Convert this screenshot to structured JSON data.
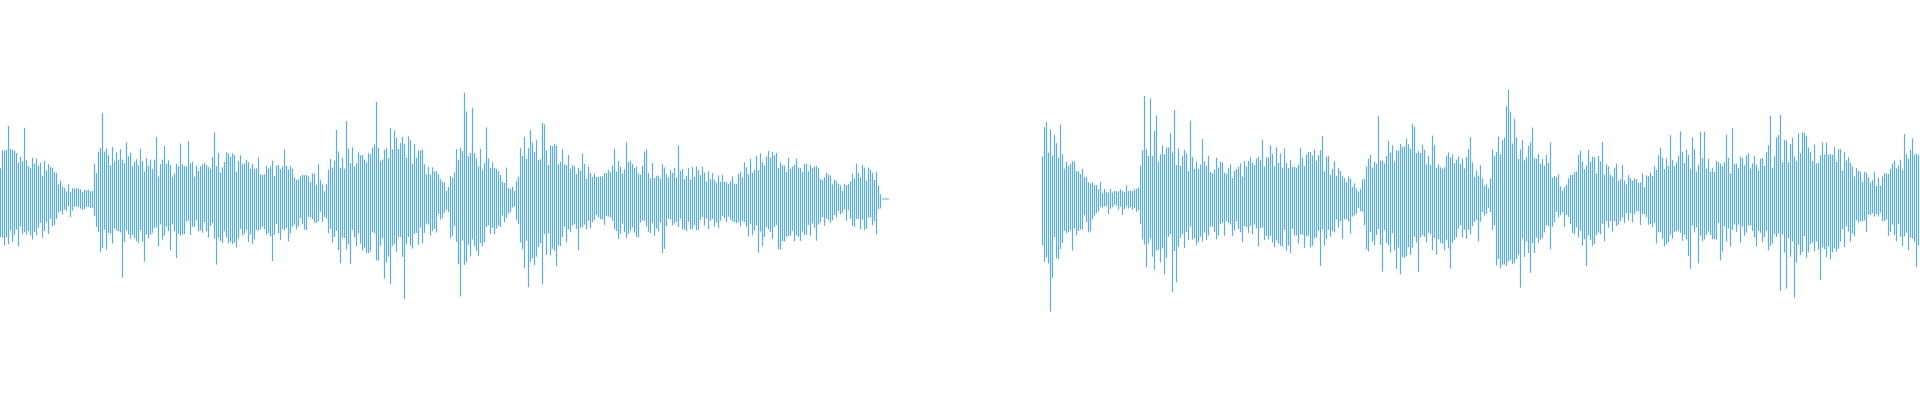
{
  "chart_data": {
    "type": "waveform",
    "color": "#5dade2",
    "background": "#ffffff",
    "amplitude_range": [
      -1,
      1
    ],
    "grid": false,
    "legend": "none",
    "envelope": [
      [
        0,
        0.28
      ],
      [
        0.026,
        0.18
      ],
      [
        0.035,
        0.06
      ],
      [
        0.048,
        0.05
      ],
      [
        0.051,
        0.28
      ],
      [
        0.077,
        0.21
      ],
      [
        0.102,
        0.18
      ],
      [
        0.118,
        0.25
      ],
      [
        0.134,
        0.21
      ],
      [
        0.163,
        0.15
      ],
      [
        0.169,
        0.06
      ],
      [
        0.172,
        0.25
      ],
      [
        0.191,
        0.28
      ],
      [
        0.204,
        0.37
      ],
      [
        0.22,
        0.25
      ],
      [
        0.233,
        0.06
      ],
      [
        0.239,
        0.37
      ],
      [
        0.255,
        0.21
      ],
      [
        0.268,
        0.06
      ],
      [
        0.273,
        0.37
      ],
      [
        0.293,
        0.25
      ],
      [
        0.313,
        0.12
      ],
      [
        0.322,
        0.21
      ],
      [
        0.344,
        0.18
      ],
      [
        0.37,
        0.15
      ],
      [
        0.383,
        0.12
      ],
      [
        0.395,
        0.25
      ],
      [
        0.421,
        0.21
      ],
      [
        0.44,
        0.06
      ],
      [
        0.446,
        0.18
      ],
      [
        0.456,
        0.15
      ],
      [
        0.459,
        0
      ],
      [
        0.542,
        0
      ],
      [
        0.543,
        0.43
      ],
      [
        0.561,
        0.18
      ],
      [
        0.574,
        0.05
      ],
      [
        0.593,
        0.06
      ],
      [
        0.596,
        0.37
      ],
      [
        0.619,
        0.25
      ],
      [
        0.644,
        0.18
      ],
      [
        0.663,
        0.28
      ],
      [
        0.689,
        0.25
      ],
      [
        0.708,
        0.06
      ],
      [
        0.714,
        0.25
      ],
      [
        0.733,
        0.34
      ],
      [
        0.765,
        0.21
      ],
      [
        0.775,
        0.06
      ],
      [
        0.781,
        0.37
      ],
      [
        0.804,
        0.25
      ],
      [
        0.813,
        0.06
      ],
      [
        0.823,
        0.28
      ],
      [
        0.842,
        0.15
      ],
      [
        0.855,
        0.09
      ],
      [
        0.867,
        0.25
      ],
      [
        0.893,
        0.21
      ],
      [
        0.918,
        0.25
      ],
      [
        0.9375,
        0.34
      ],
      [
        0.957,
        0.28
      ],
      [
        0.976,
        0.09
      ],
      [
        0.985,
        0.18
      ],
      [
        1,
        0.37
      ]
    ]
  }
}
